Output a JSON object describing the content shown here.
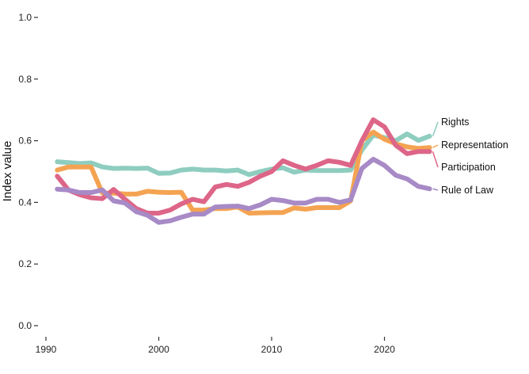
{
  "chart_data": {
    "type": "line",
    "ylabel": "Index value",
    "xlabel": "",
    "xlim": [
      1990,
      2030
    ],
    "ylim": [
      0.0,
      1.0
    ],
    "x_ticks": [
      1990,
      2000,
      2010,
      2020
    ],
    "y_ticks": [
      0.0,
      0.2,
      0.4,
      0.6,
      0.8,
      1.0
    ],
    "y_tick_labels": [
      "0.0",
      "0.2",
      "0.4",
      "0.6",
      "0.8",
      "1.0"
    ],
    "x": [
      1991,
      1992,
      1993,
      1994,
      1995,
      1996,
      1997,
      1998,
      1999,
      2000,
      2001,
      2002,
      2003,
      2004,
      2005,
      2006,
      2007,
      2008,
      2009,
      2010,
      2011,
      2012,
      2013,
      2014,
      2015,
      2016,
      2017,
      2018,
      2019,
      2020,
      2021,
      2022,
      2023,
      2024
    ],
    "legend_placement": "right-end-labels",
    "grid": false,
    "series": [
      {
        "name": "Rights",
        "color": "#8ecdbf",
        "values": [
          0.532,
          0.529,
          0.526,
          0.528,
          0.515,
          0.51,
          0.511,
          0.51,
          0.511,
          0.494,
          0.495,
          0.505,
          0.508,
          0.505,
          0.505,
          0.502,
          0.505,
          0.49,
          0.5,
          0.508,
          0.512,
          0.498,
          0.505,
          0.503,
          0.503,
          0.503,
          0.505,
          0.57,
          0.618,
          0.61,
          0.6,
          0.622,
          0.601,
          0.615
        ]
      },
      {
        "name": "Representation",
        "color": "#f4a352",
        "values": [
          0.505,
          0.515,
          0.515,
          0.515,
          0.43,
          0.43,
          0.427,
          0.427,
          0.436,
          0.433,
          0.432,
          0.433,
          0.375,
          0.375,
          0.38,
          0.38,
          0.385,
          0.365,
          0.366,
          0.367,
          0.367,
          0.382,
          0.378,
          0.383,
          0.383,
          0.383,
          0.405,
          0.6,
          0.628,
          0.605,
          0.59,
          0.58,
          0.575,
          0.578
        ]
      },
      {
        "name": "Participation",
        "color": "#dd6688",
        "values": [
          0.485,
          0.44,
          0.425,
          0.415,
          0.412,
          0.442,
          0.41,
          0.38,
          0.365,
          0.365,
          0.375,
          0.395,
          0.41,
          0.402,
          0.45,
          0.458,
          0.452,
          0.465,
          0.485,
          0.5,
          0.535,
          0.52,
          0.508,
          0.52,
          0.535,
          0.53,
          0.52,
          0.6,
          0.668,
          0.645,
          0.585,
          0.558,
          0.565,
          0.565
        ]
      },
      {
        "name": "Rule of Law",
        "color": "#a78ac6",
        "values": [
          0.443,
          0.44,
          0.432,
          0.432,
          0.44,
          0.405,
          0.398,
          0.37,
          0.358,
          0.335,
          0.34,
          0.352,
          0.362,
          0.362,
          0.385,
          0.387,
          0.388,
          0.38,
          0.392,
          0.41,
          0.406,
          0.398,
          0.398,
          0.41,
          0.41,
          0.4,
          0.408,
          0.51,
          0.54,
          0.52,
          0.488,
          0.476,
          0.452,
          0.444
        ]
      }
    ]
  }
}
